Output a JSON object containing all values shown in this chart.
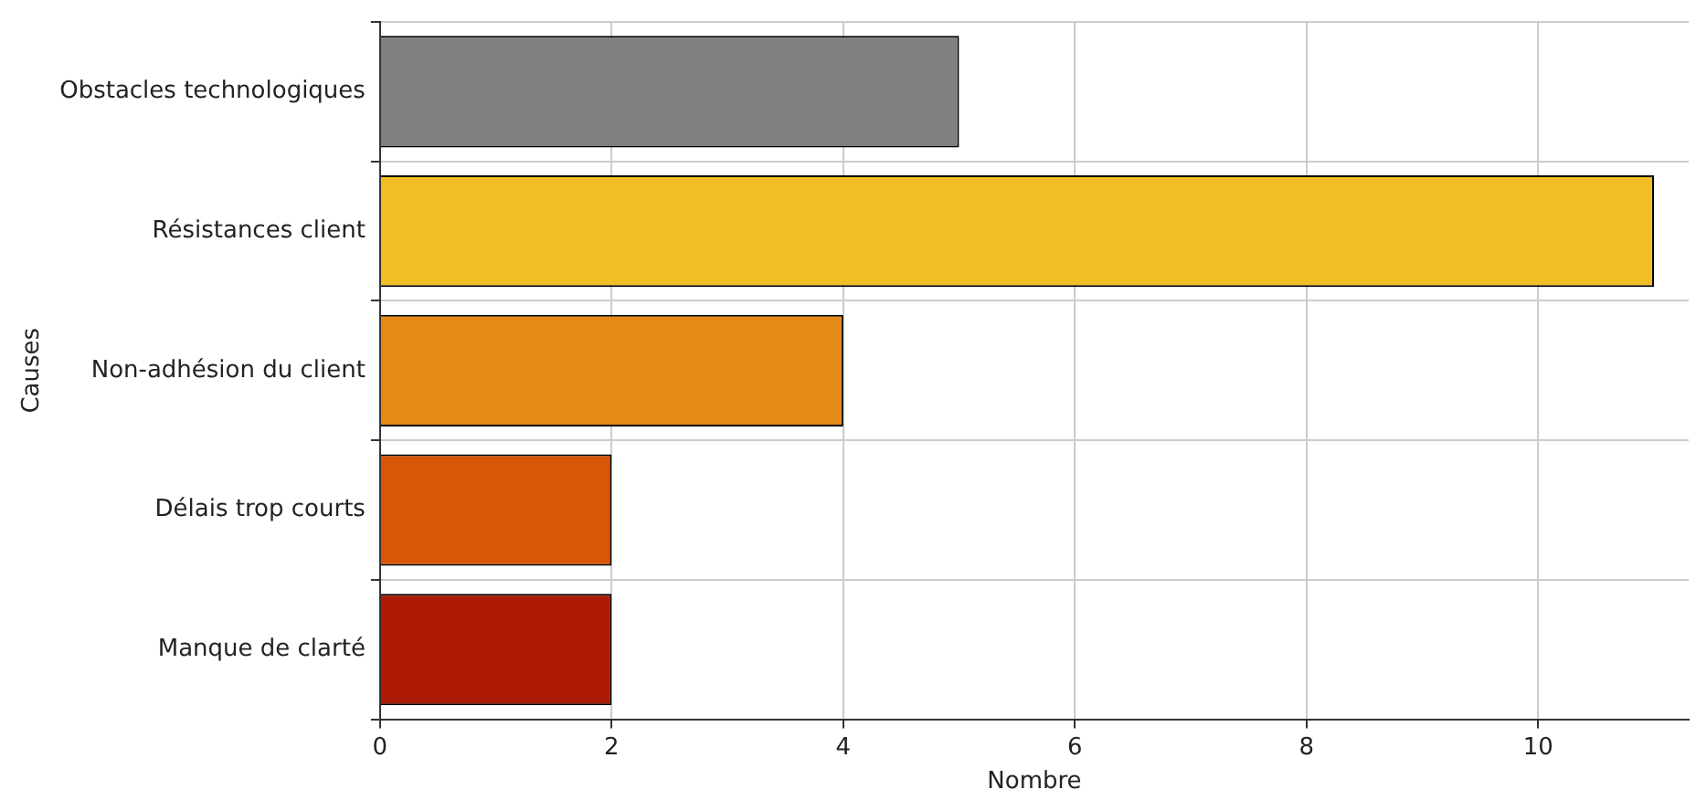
{
  "chart_data": {
    "type": "bar",
    "orientation": "horizontal",
    "xlabel": "Nombre",
    "ylabel": "Causes",
    "categories": [
      "Obstacles technologiques",
      "Résistances client",
      "Non-adhésion du client",
      "Délais trop courts",
      "Manque de clarté"
    ],
    "values": [
      5,
      11,
      4,
      2,
      2
    ],
    "colors": [
      "#808080",
      "#f2be26",
      "#e68a17",
      "#d95508",
      "#ad1a05"
    ],
    "xlim": [
      0,
      11.3
    ],
    "xticks": [
      0,
      2,
      4,
      6,
      8,
      10
    ],
    "grid": true
  }
}
